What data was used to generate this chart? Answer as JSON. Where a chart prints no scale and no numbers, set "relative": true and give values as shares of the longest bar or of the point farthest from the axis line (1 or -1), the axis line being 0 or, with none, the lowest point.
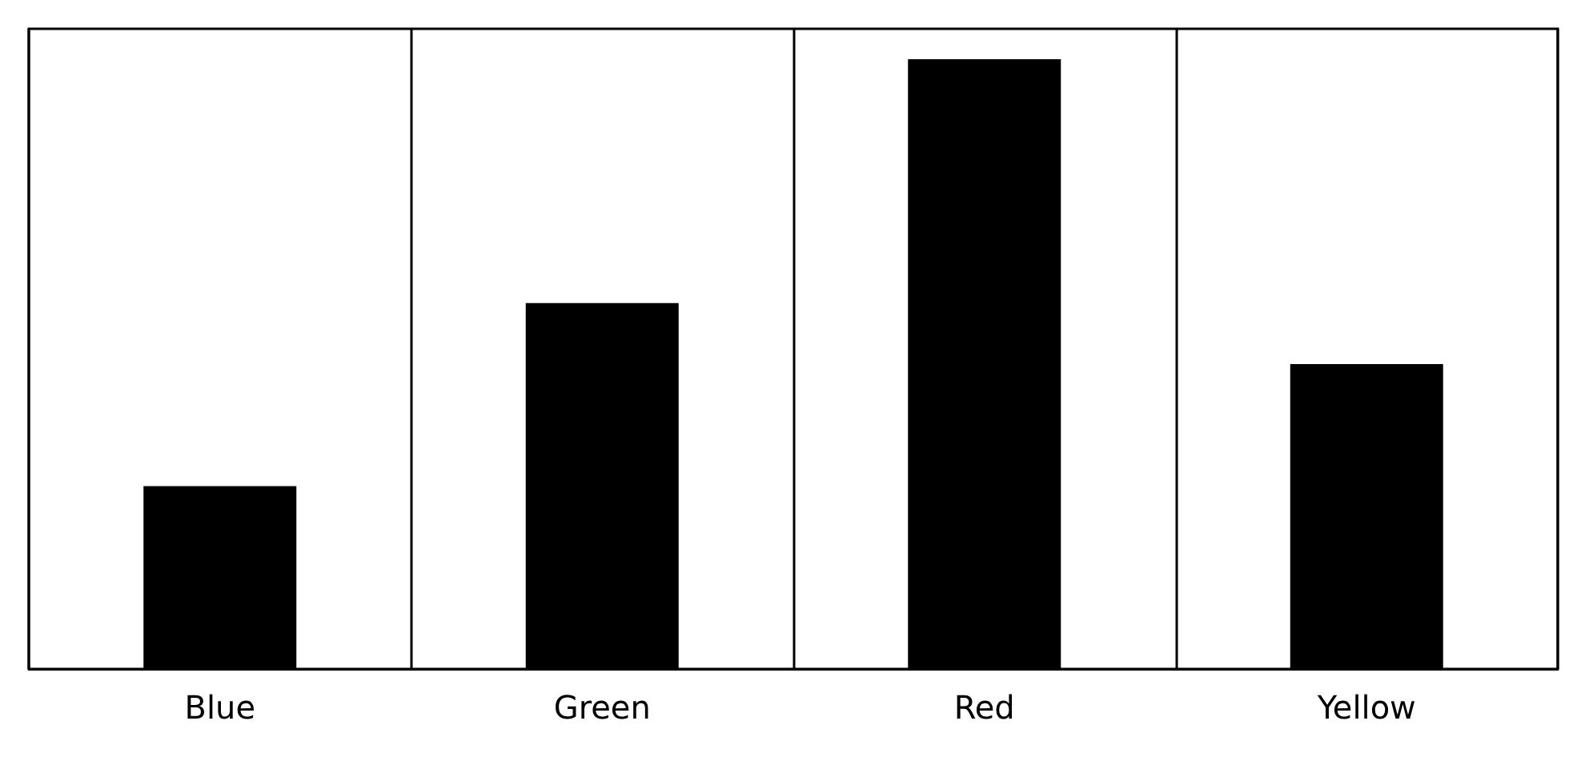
{
  "chart_data": {
    "type": "bar",
    "relative": true,
    "categories": [
      "Blue",
      "Green",
      "Red",
      "Yellow"
    ],
    "values": [
      0.3,
      0.6,
      1,
      0.5
    ],
    "color": "#000000",
    "grid": "x"
  }
}
